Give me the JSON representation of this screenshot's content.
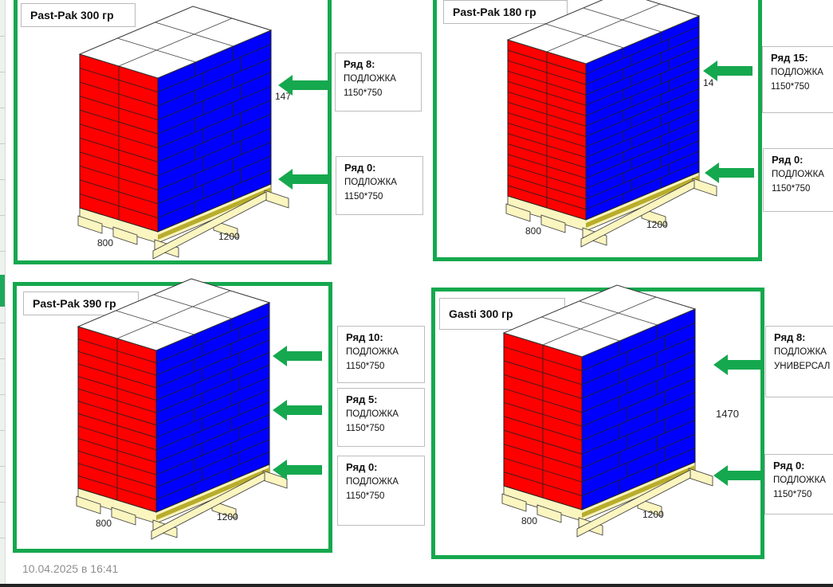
{
  "panels": [
    {
      "title": "Past-Pak 300 гр",
      "dims": {
        "width": "800",
        "length": "1200",
        "height": "147"
      },
      "labels": [
        {
          "row": "Ряд 8:",
          "line1": "ПОДЛОЖКА",
          "line2": "1150*750"
        },
        {
          "row": "Ряд 0:",
          "line1": "ПОДЛОЖКА",
          "line2": "1150*750"
        }
      ]
    },
    {
      "title": "Past-Pak 180 гр",
      "dims": {
        "width": "800",
        "length": "1200",
        "height": "14"
      },
      "labels": [
        {
          "row": "Ряд 15:",
          "line1": "ПОДЛОЖКА",
          "line2": "1150*750"
        },
        {
          "row": "Ряд 0:",
          "line1": "ПОДЛОЖКА",
          "line2": "1150*750"
        }
      ]
    },
    {
      "title": "Past-Pak 390 гр",
      "dims": {
        "width": "800",
        "length": "1200",
        "height": ""
      },
      "labels": [
        {
          "row": "Ряд 10:",
          "line1": "ПОДЛОЖКА",
          "line2": "1150*750"
        },
        {
          "row": "Ряд 5:",
          "line1": "ПОДЛОЖКА",
          "line2": "1150*750"
        },
        {
          "row": "Ряд 0:",
          "line1": "ПОДЛОЖКА",
          "line2": "1150*750"
        }
      ]
    },
    {
      "title": "Gasti 300 гр",
      "dims": {
        "width": "800",
        "length": "1200",
        "height": "1470"
      },
      "labels": [
        {
          "row": "Ряд 8:",
          "line1": "ПОДЛОЖКА",
          "line2": "УНИВЕРСАЛ"
        },
        {
          "row": "Ряд 0:",
          "line1": "ПОДЛОЖКА",
          "line2": "1150*750"
        }
      ]
    }
  ],
  "timestamp": "10.04.2025 в 16:41",
  "colors": {
    "frame": "#15a84e",
    "arrow": "#15a84e",
    "front_face": "#ff0000",
    "side_face": "#0000ff",
    "top_face": "#ffffff",
    "pallet_wood": "#fbf5c0",
    "pallet_dark": "#b8ad2c"
  }
}
